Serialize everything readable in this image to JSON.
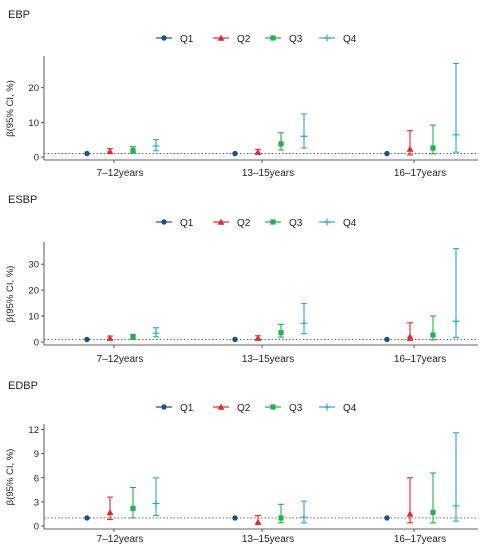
{
  "legend_labels": [
    "Q1",
    "Q2",
    "Q3",
    "Q4"
  ],
  "colors": {
    "Q1": "#1a4f8a",
    "Q2": "#e8262d",
    "Q3": "#22b14c",
    "Q4": "#29a9cf",
    "axis": "#333333",
    "refline": "#555555"
  },
  "markers": {
    "Q1": "circle",
    "Q2": "triangle",
    "Q3": "square",
    "Q4": "plus"
  },
  "reference_line": 1,
  "chart_data": [
    {
      "type": "scatter",
      "title": "EBP",
      "ylabel": "β(95% CI, %)",
      "categories": [
        "7–12years",
        "13–15years",
        "16–17years"
      ],
      "ylim": [
        0,
        28
      ],
      "yticks": [
        0,
        10,
        20
      ],
      "series": [
        {
          "name": "Q1",
          "points": [
            {
              "est": 1.0,
              "lo": 1.0,
              "hi": 1.0
            },
            {
              "est": 1.0,
              "lo": 1.0,
              "hi": 1.0
            },
            {
              "est": 1.0,
              "lo": 1.0,
              "hi": 1.0
            }
          ]
        },
        {
          "name": "Q2",
          "points": [
            {
              "est": 1.6,
              "lo": 1.0,
              "hi": 2.4
            },
            {
              "est": 1.4,
              "lo": 0.8,
              "hi": 2.2
            },
            {
              "est": 2.3,
              "lo": 0.6,
              "hi": 7.6
            }
          ]
        },
        {
          "name": "Q3",
          "points": [
            {
              "est": 1.9,
              "lo": 1.1,
              "hi": 3.0
            },
            {
              "est": 3.8,
              "lo": 2.0,
              "hi": 7.0
            },
            {
              "est": 2.6,
              "lo": 0.9,
              "hi": 9.2
            }
          ]
        },
        {
          "name": "Q4",
          "points": [
            {
              "est": 3.2,
              "lo": 1.8,
              "hi": 5.0
            },
            {
              "est": 6.0,
              "lo": 2.6,
              "hi": 12.4
            },
            {
              "est": 6.4,
              "lo": 1.4,
              "hi": 27.0
            }
          ]
        }
      ]
    },
    {
      "type": "scatter",
      "title": "ESBP",
      "ylabel": "β(95% CI, %)",
      "categories": [
        "7–12years",
        "13–15years",
        "16–17years"
      ],
      "ylim": [
        0,
        37
      ],
      "yticks": [
        0,
        10,
        20,
        30
      ],
      "series": [
        {
          "name": "Q1",
          "points": [
            {
              "est": 1.0,
              "lo": 1.0,
              "hi": 1.0
            },
            {
              "est": 1.0,
              "lo": 1.0,
              "hi": 1.0
            },
            {
              "est": 1.0,
              "lo": 1.0,
              "hi": 1.0
            }
          ]
        },
        {
          "name": "Q2",
          "points": [
            {
              "est": 1.5,
              "lo": 1.0,
              "hi": 2.3
            },
            {
              "est": 1.5,
              "lo": 0.8,
              "hi": 2.4
            },
            {
              "est": 2.1,
              "lo": 0.6,
              "hi": 7.4
            }
          ]
        },
        {
          "name": "Q3",
          "points": [
            {
              "est": 1.8,
              "lo": 1.1,
              "hi": 2.9
            },
            {
              "est": 3.6,
              "lo": 1.9,
              "hi": 6.8
            },
            {
              "est": 2.7,
              "lo": 0.8,
              "hi": 10.0
            }
          ]
        },
        {
          "name": "Q4",
          "points": [
            {
              "est": 3.4,
              "lo": 2.0,
              "hi": 5.5
            },
            {
              "est": 7.2,
              "lo": 3.2,
              "hi": 14.8
            },
            {
              "est": 8.0,
              "lo": 1.7,
              "hi": 36.0
            }
          ]
        }
      ]
    },
    {
      "type": "scatter",
      "title": "EDBP",
      "ylabel": "β(95% CI, %)",
      "categories": [
        "7–12years",
        "13–15years",
        "16–17years"
      ],
      "ylim": [
        0,
        12.2
      ],
      "yticks": [
        0,
        3,
        6,
        9,
        12
      ],
      "series": [
        {
          "name": "Q1",
          "points": [
            {
              "est": 1.0,
              "lo": 1.0,
              "hi": 1.0
            },
            {
              "est": 1.0,
              "lo": 1.0,
              "hi": 1.0
            },
            {
              "est": 1.0,
              "lo": 1.0,
              "hi": 1.0
            }
          ]
        },
        {
          "name": "Q2",
          "points": [
            {
              "est": 1.7,
              "lo": 0.8,
              "hi": 3.6
            },
            {
              "est": 0.5,
              "lo": 0.2,
              "hi": 1.3
            },
            {
              "est": 1.5,
              "lo": 0.4,
              "hi": 6.0
            }
          ]
        },
        {
          "name": "Q3",
          "points": [
            {
              "est": 2.2,
              "lo": 1.0,
              "hi": 4.8
            },
            {
              "est": 1.0,
              "lo": 0.4,
              "hi": 2.7
            },
            {
              "est": 1.7,
              "lo": 0.4,
              "hi": 6.6
            }
          ]
        },
        {
          "name": "Q4",
          "points": [
            {
              "est": 2.8,
              "lo": 1.3,
              "hi": 6.0
            },
            {
              "est": 1.1,
              "lo": 0.4,
              "hi": 3.1
            },
            {
              "est": 2.5,
              "lo": 0.6,
              "hi": 11.6
            }
          ]
        }
      ]
    }
  ]
}
